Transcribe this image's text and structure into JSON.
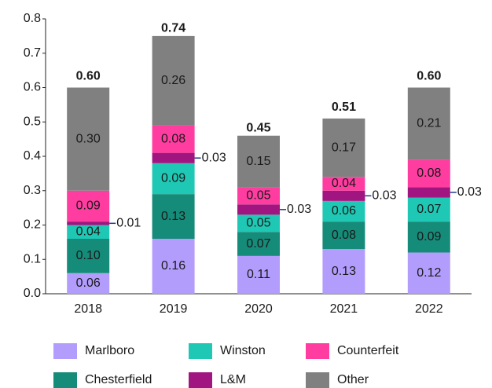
{
  "chart_data": {
    "type": "stacked_bar",
    "categories": [
      "2018",
      "2019",
      "2020",
      "2021",
      "2022"
    ],
    "series": [
      {
        "name": "Marlboro",
        "color": "#b39dfc",
        "values": [
          0.06,
          0.16,
          0.11,
          0.13,
          0.12
        ],
        "value_labels": [
          "0.06",
          "0.16",
          "0.11",
          "0.13",
          "0.12"
        ]
      },
      {
        "name": "Chesterfield",
        "color": "#158b79",
        "values": [
          0.1,
          0.13,
          0.07,
          0.08,
          0.09
        ],
        "value_labels": [
          "0.10",
          "0.13",
          "0.07",
          "0.08",
          "0.09"
        ]
      },
      {
        "name": "Winston",
        "color": "#1fc8b4",
        "values": [
          0.04,
          0.09,
          0.05,
          0.06,
          0.07
        ],
        "value_labels": [
          "0.04",
          "0.09",
          "0.05",
          "0.06",
          "0.07"
        ]
      },
      {
        "name": "L&M",
        "color": "#a0157f",
        "values": [
          0.01,
          0.03,
          0.03,
          0.03,
          0.03
        ],
        "value_labels": [
          "0.01",
          "0.03",
          "0.03",
          "0.03",
          "0.03"
        ]
      },
      {
        "name": "Counterfeit",
        "color": "#ff3ca0",
        "values": [
          0.09,
          0.08,
          0.05,
          0.04,
          0.08
        ],
        "value_labels": [
          "0.09",
          "0.08",
          "0.05",
          "0.04",
          "0.08"
        ]
      },
      {
        "name": "Other",
        "color": "#808080",
        "values": [
          0.3,
          0.26,
          0.15,
          0.17,
          0.21
        ],
        "value_labels": [
          "0.30",
          "0.26",
          "0.15",
          "0.17",
          "0.21"
        ]
      }
    ],
    "totals": [
      0.6,
      0.74,
      0.45,
      0.51,
      0.6
    ],
    "total_labels": [
      "0.60",
      "0.74",
      "0.45",
      "0.51",
      "0.60"
    ],
    "ylim": [
      0,
      0.8
    ],
    "yticks": [
      {
        "value": 0,
        "label": "0.0"
      },
      0.1,
      0.2,
      0.3,
      0.4,
      0.5,
      0.6,
      0.7,
      0.8
    ]
  }
}
